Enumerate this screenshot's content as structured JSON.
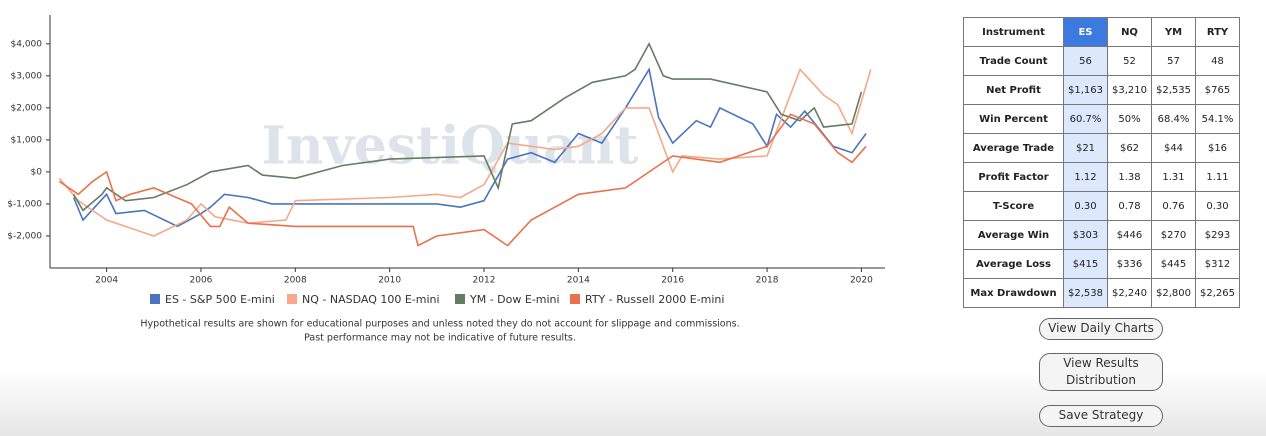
{
  "chart_data": {
    "type": "line",
    "watermark": "InvestiQuant",
    "series": [
      {
        "name": "ES - S&P 500 E-mini",
        "color": "#4a74c0",
        "x": [
          2003.3,
          2003.5,
          2004,
          2004.2,
          2004.8,
          2005.5,
          2006,
          2006.2,
          2006.5,
          2007,
          2007.5,
          2009,
          2011,
          2011.5,
          2012,
          2012.5,
          2013,
          2013.5,
          2014,
          2014.5,
          2015,
          2015.5,
          2015.7,
          2016,
          2016.5,
          2016.8,
          2017,
          2017.7,
          2018,
          2018.2,
          2018.5,
          2018.8,
          2019.4,
          2019.8,
          2020.1
        ],
        "values": [
          -800,
          -1500,
          -700,
          -1300,
          -1200,
          -1700,
          -1300,
          -1100,
          -700,
          -800,
          -1000,
          -1000,
          -1000,
          -1100,
          -900,
          400,
          600,
          300,
          1200,
          900,
          2000,
          3200,
          1700,
          900,
          1600,
          1400,
          2000,
          1500,
          800,
          1800,
          1400,
          1900,
          800,
          600,
          1200
        ]
      },
      {
        "name": "NQ - NASDAQ 100 E-mini",
        "color": "#f5a98a",
        "x": [
          2003,
          2003.4,
          2003.7,
          2004,
          2005,
          2005.7,
          2006,
          2006.3,
          2007,
          2007.8,
          2008,
          2010,
          2011,
          2011.5,
          2012,
          2012.5,
          2013.5,
          2014,
          2014.5,
          2015,
          2015.5,
          2016,
          2016.2,
          2017,
          2018,
          2018.7,
          2019.2,
          2019.5,
          2019.8,
          2020.2
        ],
        "values": [
          -200,
          -900,
          -1200,
          -1500,
          -2000,
          -1500,
          -1000,
          -1400,
          -1600,
          -1500,
          -900,
          -800,
          -700,
          -800,
          -400,
          900,
          700,
          800,
          1200,
          2000,
          2000,
          0,
          500,
          400,
          500,
          3200,
          2400,
          2100,
          1200,
          3200
        ]
      },
      {
        "name": "YM - Dow E-mini",
        "color": "#637d63",
        "x": [
          2003.3,
          2003.5,
          2003.9,
          2004,
          2004.4,
          2005,
          2005.7,
          2006.2,
          2007,
          2007.3,
          2008,
          2009,
          2010,
          2012,
          2012.3,
          2012.6,
          2013,
          2013.7,
          2014.3,
          2015,
          2015.2,
          2015.5,
          2015.8,
          2016,
          2016.8,
          2018,
          2018.3,
          2018.7,
          2019,
          2019.2,
          2019.8,
          2020
        ],
        "values": [
          -700,
          -1200,
          -700,
          -500,
          -900,
          -800,
          -400,
          0,
          200,
          -100,
          -200,
          200,
          400,
          500,
          -500,
          1500,
          1600,
          2300,
          2800,
          3000,
          3200,
          4000,
          3000,
          2900,
          2900,
          2500,
          1800,
          1600,
          2000,
          1400,
          1500,
          2500
        ]
      },
      {
        "name": "RTY - Russell 2000 E-mini",
        "color": "#e9714b",
        "x": [
          2003,
          2003.4,
          2003.7,
          2004,
          2004.2,
          2004.5,
          2005,
          2005.8,
          2006.2,
          2006.4,
          2006.6,
          2007,
          2008,
          2010.5,
          2010.6,
          2011,
          2012,
          2012.5,
          2013,
          2013.5,
          2014,
          2015,
          2016,
          2017,
          2018,
          2018.5,
          2019,
          2019.5,
          2019.8,
          2020.1
        ],
        "values": [
          -300,
          -700,
          -300,
          0,
          -900,
          -700,
          -500,
          -1000,
          -1700,
          -1700,
          -1100,
          -1600,
          -1700,
          -1700,
          -2300,
          -2000,
          -1800,
          -2300,
          -1500,
          -1100,
          -700,
          -500,
          500,
          300,
          800,
          1800,
          1500,
          600,
          300,
          800
        ]
      }
    ],
    "xlim": [
      2002.8,
      2020.5
    ],
    "xticks": [
      2004,
      2006,
      2008,
      2010,
      2012,
      2014,
      2016,
      2018,
      2020
    ],
    "ylim": [
      -3000,
      4900
    ],
    "yticks": [
      {
        "value": -2000,
        "label": "$-2,000"
      },
      {
        "value": -1000,
        "label": "$-1,000"
      },
      {
        "value": 0,
        "label": "$0"
      },
      {
        "value": 1000,
        "label": "$1,000"
      },
      {
        "value": 2000,
        "label": "$2,000"
      },
      {
        "value": 3000,
        "label": "$3,000"
      },
      {
        "value": 4000,
        "label": "$4,000"
      }
    ],
    "grid": false,
    "notes": [
      "Hypothetical results are shown for educational purposes and unless noted they do not account for slippage and commissions.",
      "Past performance may not be indicative of future results."
    ]
  },
  "table": {
    "header": [
      "Instrument",
      "ES",
      "NQ",
      "YM",
      "RTY"
    ],
    "rows": [
      [
        "Trade Count",
        "56",
        "52",
        "57",
        "48"
      ],
      [
        "Net Profit",
        "$1,163",
        "$3,210",
        "$2,535",
        "$765"
      ],
      [
        "Win Percent",
        "60.7%",
        "50%",
        "68.4%",
        "54.1%"
      ],
      [
        "Average Trade",
        "$21",
        "$62",
        "$44",
        "$16"
      ],
      [
        "Profit Factor",
        "1.12",
        "1.38",
        "1.31",
        "1.11"
      ],
      [
        "T-Score",
        "0.30",
        "0.78",
        "0.76",
        "0.30"
      ],
      [
        "Average Win",
        "$303",
        "$446",
        "$270",
        "$293"
      ],
      [
        "Average Loss",
        "$415",
        "$336",
        "$445",
        "$312"
      ],
      [
        "Max Drawdown",
        "$2,538",
        "$2,240",
        "$2,800",
        "$2,265"
      ]
    ]
  },
  "buttons": [
    "View Daily Charts",
    "View Results Distribution",
    "Save Strategy"
  ]
}
